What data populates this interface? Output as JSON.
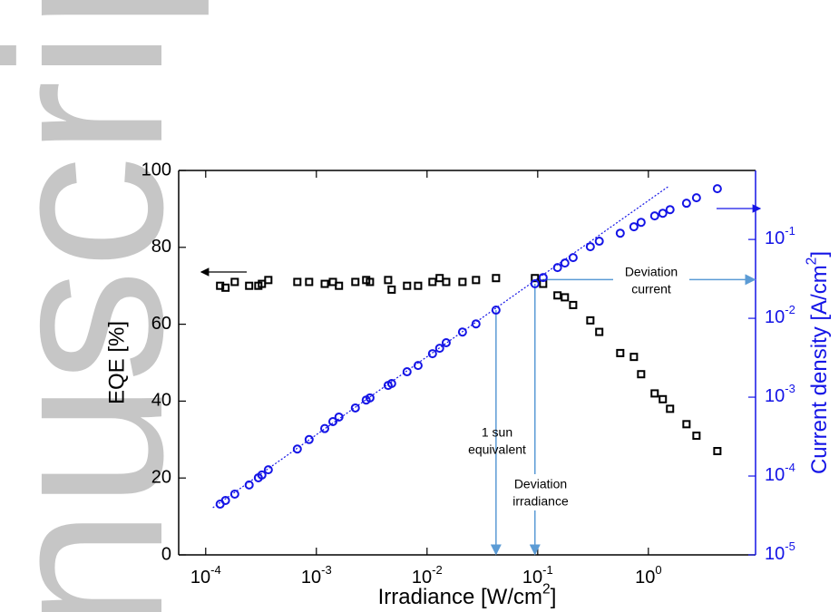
{
  "watermark": "nuscript",
  "chart_data": {
    "type": "scatter",
    "xlabel": "Irradiance [W/cm2]",
    "ylabel": "EQE [%]",
    "y2label": "Current density [A/cm2]",
    "xscale": "log",
    "y2scale": "log",
    "xlim": [
      5.7e-05,
      9.3
    ],
    "xticks": [
      {
        "value": 0.0001,
        "label": "10-4"
      },
      {
        "value": 0.001,
        "label": "10-3"
      },
      {
        "value": 0.01,
        "label": "10-2"
      },
      {
        "value": 0.1,
        "label": "10-1"
      },
      {
        "value": 1,
        "label": "100"
      }
    ],
    "ylim": [
      0,
      100
    ],
    "yticks": [
      0,
      20,
      40,
      60,
      80,
      100
    ],
    "y2lim": [
      1e-05,
      0.75
    ],
    "y2ticks": [
      {
        "value": 1e-05,
        "label": "10-5"
      },
      {
        "value": 0.0001,
        "label": "10-4"
      },
      {
        "value": 0.001,
        "label": "10-3"
      },
      {
        "value": 0.01,
        "label": "10-2"
      },
      {
        "value": 0.1,
        "label": "10-1"
      }
    ],
    "y2color": "#1414e6",
    "x": [
      0.000135,
      0.000151,
      0.000183,
      0.000247,
      0.000299,
      0.000322,
      0.000368,
      0.000673,
      0.00086,
      0.00119,
      0.00141,
      0.0016,
      0.00225,
      0.00282,
      0.00305,
      0.00445,
      0.00479,
      0.0066,
      0.0083,
      0.0112,
      0.013,
      0.0149,
      0.0209,
      0.0277,
      0.042,
      0.0944,
      0.112,
      0.151,
      0.176,
      0.209,
      0.299,
      0.36,
      0.557,
      0.74,
      0.86,
      1.14,
      1.35,
      1.57,
      2.21,
      2.72,
      4.2
    ],
    "series": [
      {
        "name": "EQE",
        "color": "#000000",
        "marker": "square",
        "values": [
          70,
          69.5,
          71,
          70,
          70,
          70.5,
          71.5,
          71,
          71,
          70.5,
          71,
          70,
          71,
          71.5,
          71,
          71.5,
          69,
          70,
          70,
          71,
          72,
          71,
          71,
          71.5,
          72,
          72,
          70.5,
          67.5,
          67,
          65,
          61,
          58,
          52.5,
          51.5,
          47,
          42,
          40.5,
          38,
          34,
          31,
          27
        ]
      },
      {
        "name": "Current density",
        "color": "#1414e6",
        "marker": "circle",
        "axis": "y2",
        "values": [
          4.4e-05,
          4.9e-05,
          5.9e-05,
          7.7e-05,
          9.5e-05,
          0.000103,
          0.00012,
          0.00022,
          0.00029,
          0.0004,
          0.00049,
          0.00056,
          0.00073,
          0.00092,
          0.00098,
          0.00141,
          0.00149,
          0.0021,
          0.00252,
          0.00356,
          0.00417,
          0.0049,
          0.0067,
          0.0085,
          0.0127,
          0.0274,
          0.0329,
          0.044,
          0.0502,
          0.0589,
          0.081,
          0.095,
          0.12,
          0.145,
          0.165,
          0.199,
          0.215,
          0.239,
          0.288,
          0.338,
          0.44
        ]
      }
    ],
    "fit": {
      "x": [
        0.000116,
        1.54
      ],
      "values": [
        3.96e-05,
        0.477
      ],
      "color": "#1414e6",
      "axis": "y2"
    },
    "annotations": [
      {
        "text": [
          "1 sun",
          "equivalent"
        ],
        "x": 0.042,
        "y2": 0.0127,
        "direction": "down"
      },
      {
        "text": [
          "Deviation",
          "irradiance"
        ],
        "x": 0.0944,
        "y2": 0.0274,
        "direction": "down"
      },
      {
        "text": [
          "Deviation",
          "current"
        ],
        "x": 0.11,
        "y2": 0.031,
        "direction": "right"
      }
    ],
    "annotation_color": "#5b9bd5"
  }
}
